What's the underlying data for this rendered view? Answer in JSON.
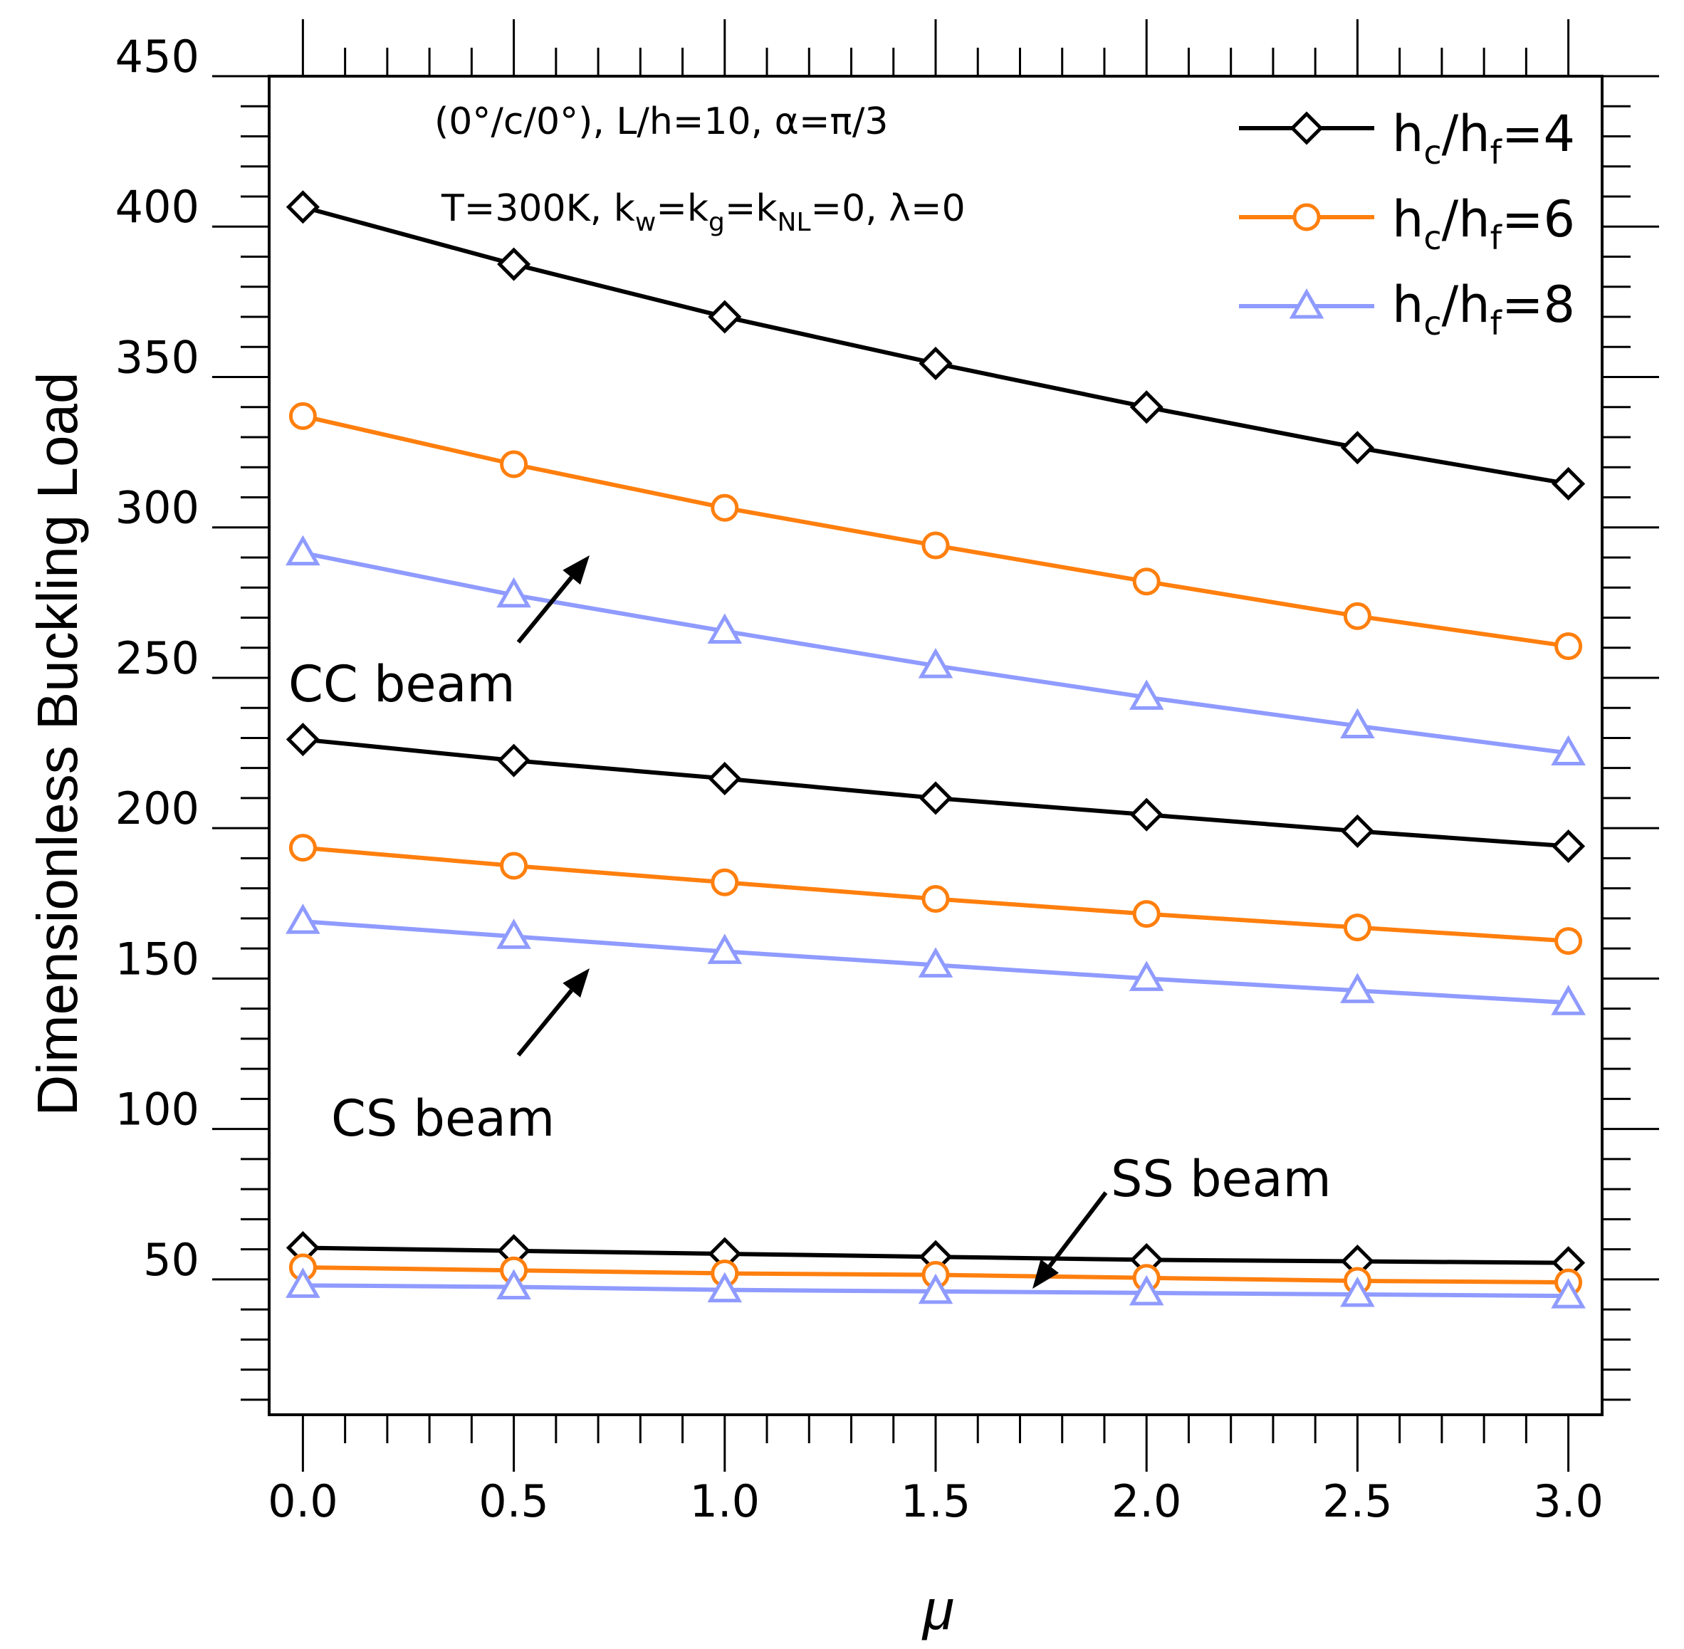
{
  "chart_data": {
    "type": "line",
    "xlabel": "μ",
    "ylabel": "Dimensionless Buckling Load",
    "xlim": [
      -0.08,
      3.08
    ],
    "ylim": [
      5,
      450
    ],
    "x_ticks": [
      0.0,
      0.5,
      1.0,
      1.5,
      2.0,
      2.5,
      3.0
    ],
    "x_tick_labels": [
      "0.0",
      "0.5",
      "1.0",
      "1.5",
      "2.0",
      "2.5",
      "3.0"
    ],
    "y_ticks": [
      50,
      100,
      150,
      200,
      250,
      300,
      350,
      400,
      450
    ],
    "y_tick_labels": [
      "50",
      "100",
      "150",
      "200",
      "250",
      "300",
      "350",
      "400",
      "450"
    ],
    "annotation_line1": "(0°/c/0°), L/h=10, α=π/3",
    "annotation_line2": {
      "a": "T=300K,  k",
      "sub1": "w",
      "b": "=k",
      "sub2": "g",
      "c": "=k",
      "sub3": "NL",
      "d": "=0,  λ=0"
    },
    "legend": [
      {
        "series": "hc/hf=4",
        "prefix": "h",
        "sub1": "c",
        "mid": "/h",
        "sub2": "f",
        "suffix": "=4"
      },
      {
        "series": "hc/hf=6",
        "prefix": "h",
        "sub1": "c",
        "mid": "/h",
        "sub2": "f",
        "suffix": "=6"
      },
      {
        "series": "hc/hf=8",
        "prefix": "h",
        "sub1": "c",
        "mid": "/h",
        "sub2": "f",
        "suffix": "=8"
      }
    ],
    "beam_labels": [
      "CC beam",
      "CS beam",
      "SS beam"
    ],
    "x": [
      0.0,
      0.5,
      1.0,
      1.5,
      2.0,
      2.5,
      3.0
    ],
    "series": [
      {
        "name": "CC hc/hf=4",
        "group": "hc/hf=4",
        "color": "#000000",
        "marker": "diamond",
        "values": [
          406.5,
          387.5,
          370.0,
          354.5,
          340.0,
          326.5,
          314.5
        ]
      },
      {
        "name": "CC hc/hf=6",
        "group": "hc/hf=6",
        "color": "#ff7f0e",
        "marker": "circle",
        "values": [
          337.0,
          321.0,
          306.5,
          294.0,
          282.0,
          270.5,
          260.5
        ]
      },
      {
        "name": "CC hc/hf=8",
        "group": "hc/hf=8",
        "color": "#8f9bff",
        "marker": "triangle",
        "values": [
          291.5,
          277.5,
          265.5,
          254.0,
          243.5,
          234.0,
          225.0
        ]
      },
      {
        "name": "CS hc/hf=4",
        "group": "hc/hf=4",
        "color": "#000000",
        "marker": "diamond",
        "values": [
          229.5,
          222.5,
          216.5,
          210.0,
          204.5,
          199.0,
          194.0
        ]
      },
      {
        "name": "CS hc/hf=6",
        "group": "hc/hf=6",
        "color": "#ff7f0e",
        "marker": "circle",
        "values": [
          193.5,
          187.5,
          182.0,
          176.5,
          171.5,
          167.0,
          162.5
        ]
      },
      {
        "name": "CS hc/hf=8",
        "group": "hc/hf=8",
        "color": "#8f9bff",
        "marker": "triangle",
        "values": [
          169.0,
          164.0,
          159.0,
          154.5,
          150.0,
          146.0,
          142.0
        ]
      },
      {
        "name": "SS hc/hf=4",
        "group": "hc/hf=4",
        "color": "#000000",
        "marker": "diamond",
        "values": [
          60.5,
          59.5,
          58.5,
          57.5,
          56.5,
          56.0,
          55.5
        ]
      },
      {
        "name": "SS hc/hf=6",
        "group": "hc/hf=6",
        "color": "#ff7f0e",
        "marker": "circle",
        "values": [
          54.0,
          53.0,
          52.0,
          51.5,
          50.5,
          49.5,
          49.0
        ]
      },
      {
        "name": "SS hc/hf=8",
        "group": "hc/hf=8",
        "color": "#8f9bff",
        "marker": "triangle",
        "values": [
          48.0,
          47.5,
          46.5,
          46.0,
          45.5,
          45.0,
          44.5
        ]
      }
    ]
  }
}
